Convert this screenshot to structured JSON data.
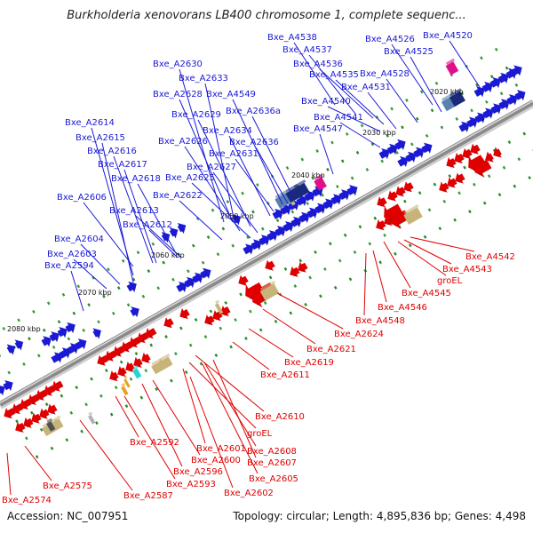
{
  "title": "Burkholderia xenovorans LB400 chromosome 1, complete sequenc...",
  "footer": {
    "accession": "Accession: NC_007951",
    "summary": "Topology: circular; Length: 4,895,836 bp; Genes: 4,498"
  },
  "scale_ticks": [
    "2020 kbp",
    "2030 kbp",
    "2040 kbp",
    "2050 kbp",
    "2060 kbp",
    "2070 kbp",
    "2080 kbp"
  ],
  "colors": {
    "forward_gene": "#1a1ad6",
    "reverse_gene": "#e00000",
    "highlight_cyan": "#22d6d6",
    "highlight_magenta": "#e0108a",
    "highlight_orange": "#e8a020",
    "tan_block": "#c8b47a",
    "navy_block": "#1a2a7a",
    "steel_block": "#5a80b0",
    "backbone": "#8a8a8a"
  },
  "top_labels": [
    "Bxe_A4538",
    "Bxe_A4537",
    "Bxe_A4526",
    "Bxe_A4520",
    "Bxe_A4536",
    "Bxe_A4525",
    "Bxe_A2630",
    "Bxe_A4535",
    "Bxe_A4528",
    "Bxe_A2633",
    "Bxe_A4531",
    "Bxe_A2628",
    "Bxe_A4549",
    "Bxe_A4540",
    "Bxe_A2629",
    "Bxe_A2636a",
    "Bxe_A4541",
    "Bxe_A2614",
    "Bxe_A2634",
    "Bxe_A4547",
    "Bxe_A2615",
    "Bxe_A2626",
    "Bxe_A2636",
    "Bxe_A2616",
    "Bxe_A2631",
    "Bxe_A2617",
    "Bxe_A2627",
    "Bxe_A2618",
    "Bxe_A2625",
    "Bxe_A2606",
    "Bxe_A2622",
    "Bxe_A2613",
    "Bxe_A2612",
    "Bxe_A2604",
    "Bxe_A2603",
    "Bxe_A2594"
  ],
  "bottom_labels": [
    "Bxe_A4542",
    "Bxe_A4543",
    "groEL",
    "Bxe_A4545",
    "Bxe_A4546",
    "Bxe_A4548",
    "Bxe_A2624",
    "Bxe_A2621",
    "Bxe_A2619",
    "Bxe_A2611",
    "Bxe_A2610",
    "groEL",
    "Bxe_A2592",
    "Bxe_A2601",
    "Bxe_A2608",
    "Bxe_A2600",
    "Bxe_A2607",
    "Bxe_A2596",
    "Bxe_A2605",
    "Bxe_A2593",
    "Bxe_A2602",
    "Bxe_A2575",
    "Bxe_A2587",
    "Bxe_A2574"
  ]
}
